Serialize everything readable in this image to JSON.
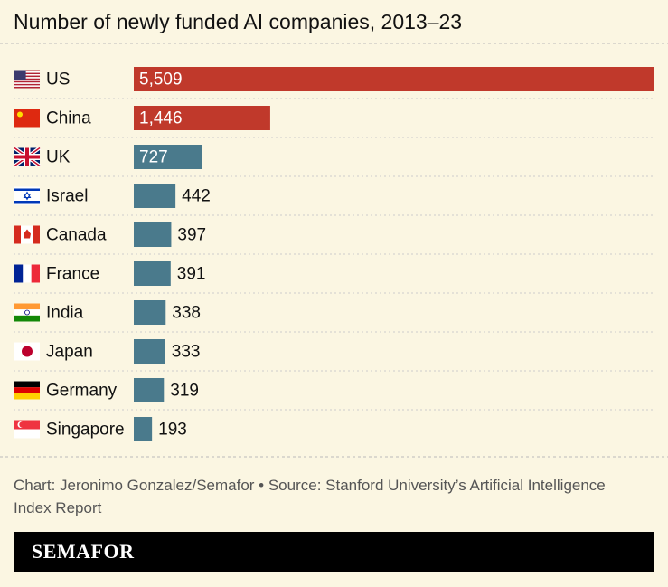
{
  "chart_data": {
    "type": "bar",
    "orientation": "horizontal",
    "title": "Number of newly funded AI companies, 2013–23",
    "categories": [
      "US",
      "China",
      "UK",
      "Israel",
      "Canada",
      "France",
      "India",
      "Japan",
      "Germany",
      "Singapore"
    ],
    "values": [
      5509,
      1446,
      727,
      442,
      397,
      391,
      338,
      333,
      319,
      193
    ],
    "value_labels": [
      "5,509",
      "1,446",
      "727",
      "442",
      "397",
      "391",
      "338",
      "333",
      "319",
      "193"
    ],
    "colors": [
      "#c0392b",
      "#c0392b",
      "#4a7a8c",
      "#4a7a8c",
      "#4a7a8c",
      "#4a7a8c",
      "#4a7a8c",
      "#4a7a8c",
      "#4a7a8c",
      "#4a7a8c"
    ],
    "source": "Chart: Jeronimo Gonzalez/Semafor • Source: Stanford University’s Artificial Intelligence Index Report",
    "brand": "SEMAFOR"
  }
}
